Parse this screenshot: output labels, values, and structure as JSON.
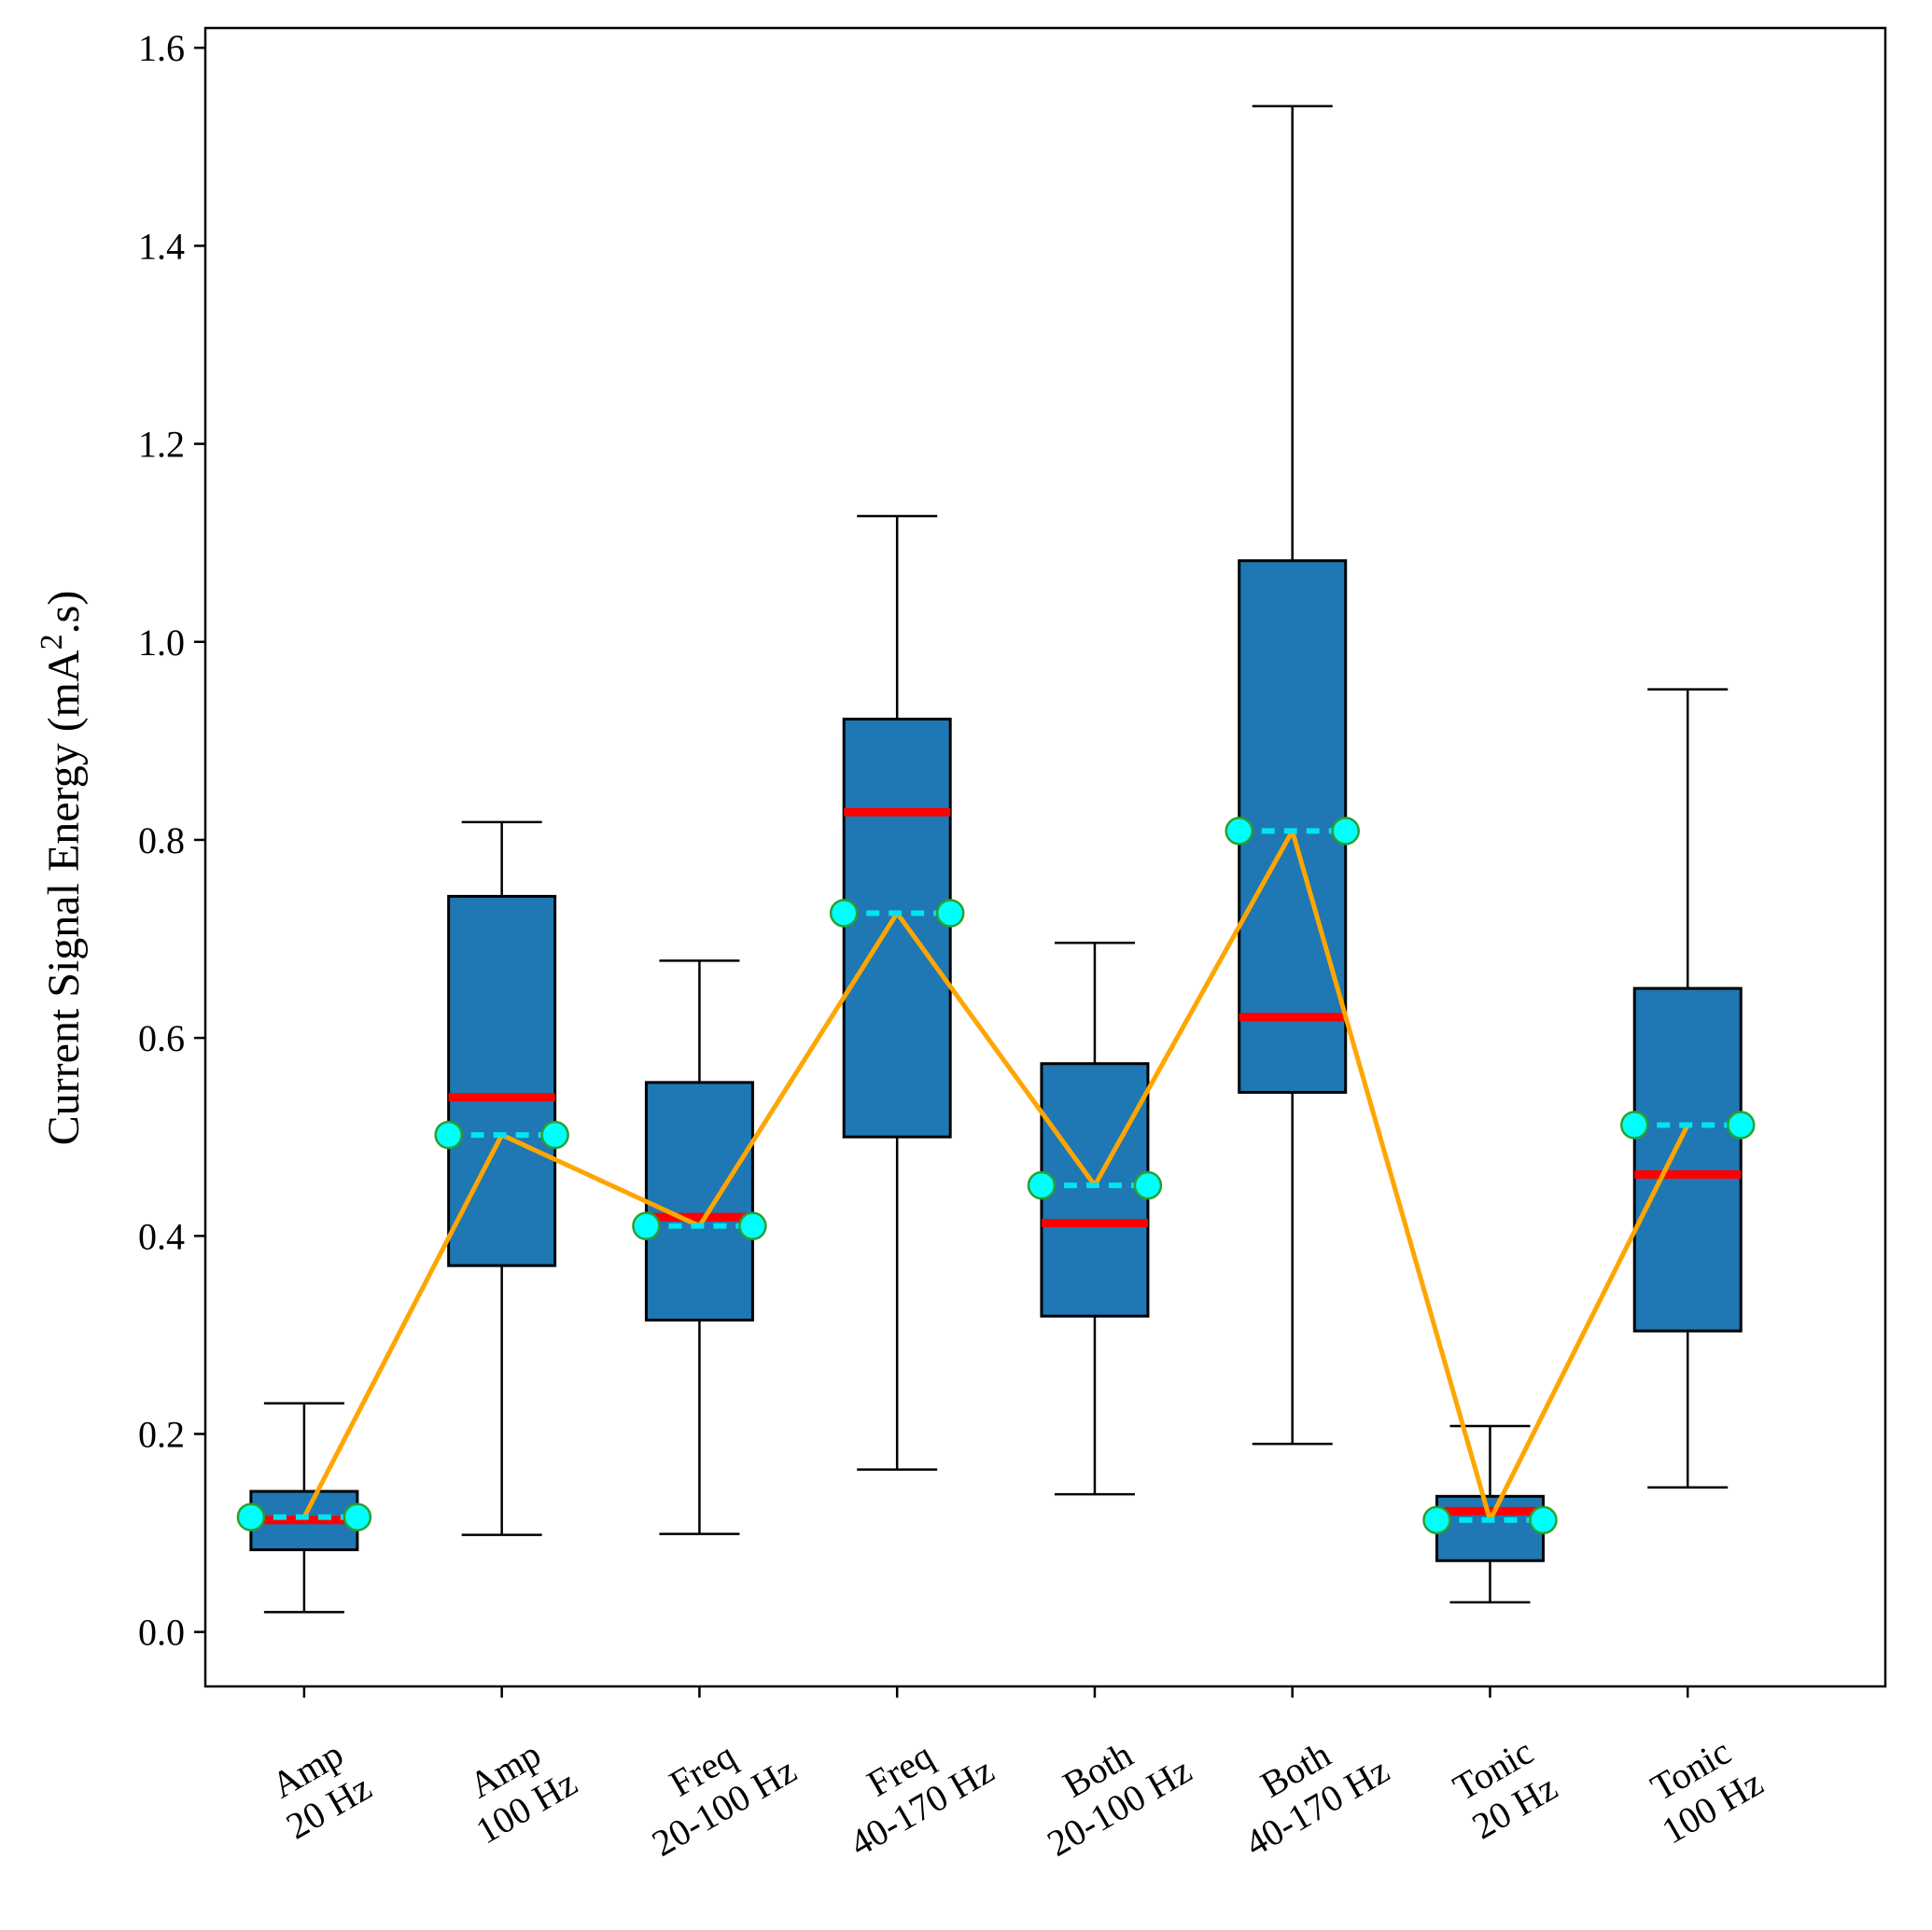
{
  "chart_data": {
    "type": "box",
    "title": "",
    "xlabel": "",
    "ylabel": "Current Signal Energy (mA",
    "ylabel_superscript": "2",
    "ylabel_suffix": ".s)",
    "ylim": [
      -0.055,
      1.62
    ],
    "yticks": [
      "0.0",
      "0.2",
      "0.4",
      "0.6",
      "0.8",
      "1.0",
      "1.2",
      "1.4",
      "1.6"
    ],
    "categories": [
      [
        "Amp",
        "20 Hz"
      ],
      [
        "Amp",
        "100 Hz"
      ],
      [
        "Freq",
        "20-100 Hz"
      ],
      [
        "Freq",
        "40-170 Hz"
      ],
      [
        "Both",
        "20-100 Hz"
      ],
      [
        "Both",
        "40-170 Hz"
      ],
      [
        "Tonic",
        "20 Hz"
      ],
      [
        "Tonic",
        "100 Hz"
      ]
    ],
    "boxes": [
      {
        "whisker_low": 0.02,
        "q1": 0.083,
        "median": 0.113,
        "q3": 0.142,
        "whisker_high": 0.231,
        "mean": 0.116
      },
      {
        "whisker_low": 0.098,
        "q1": 0.37,
        "median": 0.54,
        "q3": 0.743,
        "whisker_high": 0.818,
        "mean": 0.502
      },
      {
        "whisker_low": 0.099,
        "q1": 0.315,
        "median": 0.419,
        "q3": 0.555,
        "whisker_high": 0.678,
        "mean": 0.41
      },
      {
        "whisker_low": 0.164,
        "q1": 0.5,
        "median": 0.828,
        "q3": 0.922,
        "whisker_high": 1.127,
        "mean": 0.726
      },
      {
        "whisker_low": 0.139,
        "q1": 0.319,
        "median": 0.413,
        "q3": 0.574,
        "whisker_high": 0.696,
        "mean": 0.451
      },
      {
        "whisker_low": 0.19,
        "q1": 0.545,
        "median": 0.621,
        "q3": 1.082,
        "whisker_high": 1.541,
        "mean": 0.809
      },
      {
        "whisker_low": 0.03,
        "q1": 0.072,
        "median": 0.122,
        "q3": 0.137,
        "whisker_high": 0.208,
        "mean": 0.113
      },
      {
        "whisker_low": 0.146,
        "q1": 0.304,
        "median": 0.462,
        "q3": 0.65,
        "whisker_high": 0.952,
        "mean": 0.512
      }
    ],
    "mean_line": [
      0.116,
      0.502,
      0.41,
      0.726,
      0.451,
      0.809,
      0.113,
      0.512
    ],
    "colors": {
      "box_fill": "#1f77b4",
      "box_edge": "#000000",
      "median": "#ff0000",
      "mean_line_dashed": "#00e5ee",
      "mean_marker_fill": "#00ffff",
      "mean_marker_edge": "#2ca02c",
      "connect_line": "#ffa500"
    },
    "grid": false,
    "legend": "none"
  }
}
